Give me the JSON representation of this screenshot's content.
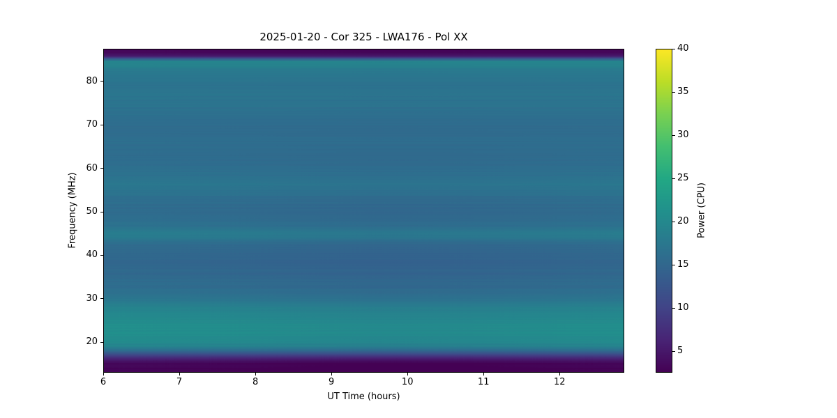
{
  "figure": {
    "background": "#ffffff"
  },
  "chart_data": {
    "type": "heatmap",
    "title": "2025-01-20 - Cor 325 - LWA176 - Pol XX",
    "xlabel": "UT Time (hours)",
    "ylabel": "Frequency (MHz)",
    "x_range": [
      6.0,
      12.85
    ],
    "y_range": [
      13.0,
      87.5
    ],
    "x_ticks": [
      6,
      7,
      8,
      9,
      10,
      11,
      12
    ],
    "y_ticks": [
      20,
      30,
      40,
      50,
      60,
      70,
      80
    ],
    "grid": false,
    "colorbar": {
      "label": "Power (CPU)",
      "ticks": [
        5,
        10,
        15,
        20,
        25,
        30,
        35,
        40
      ],
      "vmin": 2.5,
      "vmax": 40,
      "colormap": "viridis"
    },
    "colormap_stops": [
      "#440154",
      "#482475",
      "#414487",
      "#355f8d",
      "#2a788e",
      "#21918c",
      "#22a884",
      "#44bf70",
      "#7ad151",
      "#bddd26",
      "#fde725"
    ],
    "spectral_profile": {
      "description": "Time-averaged power vs frequency; spectrum is nearly constant in time with horizontal banding, dark cutoff bands at top and bottom edges",
      "freq_mhz": [
        13.0,
        14.2,
        15.2,
        16.0,
        16.8,
        17.6,
        18.4,
        19.2,
        20.0,
        21.0,
        22.5,
        24.0,
        25.5,
        27.0,
        28.5,
        30.0,
        31.5,
        33.0,
        35.0,
        37.0,
        39.0,
        41.0,
        43.0,
        44.3,
        45.5,
        46.8,
        48.5,
        50.5,
        52.5,
        54.5,
        56.0,
        57.5,
        59.0,
        61.0,
        63.0,
        65.0,
        67.0,
        69.0,
        71.0,
        73.0,
        75.0,
        77.0,
        79.0,
        81.0,
        82.5,
        83.6,
        84.6,
        85.2,
        85.8,
        86.5,
        87.5
      ],
      "power_cpu": [
        3.0,
        3.0,
        3.6,
        5.5,
        9.0,
        13.5,
        17.5,
        19.5,
        20.3,
        20.8,
        21.0,
        20.9,
        20.5,
        19.8,
        18.6,
        17.3,
        16.6,
        16.1,
        15.6,
        15.3,
        15.2,
        15.5,
        16.2,
        18.2,
        18.3,
        16.8,
        16.1,
        15.9,
        16.2,
        16.9,
        17.4,
        17.1,
        16.6,
        16.2,
        16.0,
        16.2,
        16.0,
        15.9,
        16.1,
        16.5,
        16.9,
        17.1,
        16.9,
        17.4,
        18.0,
        19.2,
        19.6,
        13.0,
        5.0,
        3.2,
        3.0
      ]
    },
    "time_dip": {
      "center_hours": 9.9,
      "sigma_hours": 1.8,
      "amplitude_cpu": 0.9
    },
    "row_noise_cpu": 0.8
  }
}
